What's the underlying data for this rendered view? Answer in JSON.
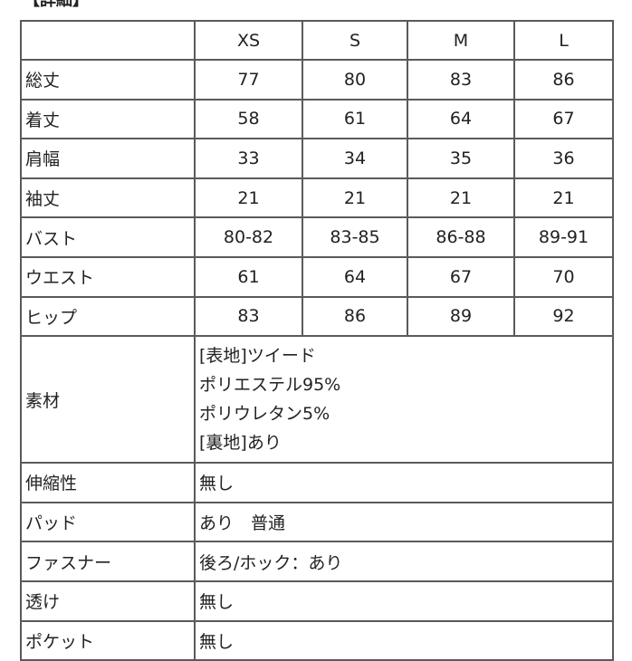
{
  "title": "【詳細】",
  "sizes": [
    "XS",
    "S",
    "M",
    "L"
  ],
  "measure_rows": [
    {
      "label": "総丈",
      "values": [
        "77",
        "80",
        "83",
        "86"
      ]
    },
    {
      "label": "着丈",
      "values": [
        "58",
        "61",
        "64",
        "67"
      ]
    },
    {
      "label": "肩幅",
      "values": [
        "33",
        "34",
        "35",
        "36"
      ]
    },
    {
      "label": "袖丈",
      "values": [
        "21",
        "21",
        "21",
        "21"
      ]
    },
    {
      "label": "バスト",
      "values": [
        "80-82",
        "83-85",
        "86-88",
        "89-91"
      ]
    },
    {
      "label": "ウエスト",
      "values": [
        "61",
        "64",
        "67",
        "70"
      ]
    },
    {
      "label": "ヒップ",
      "values": [
        "83",
        "86",
        "89",
        "92"
      ]
    }
  ],
  "material": {
    "label": "素材",
    "lines": [
      "[表地]ツイード",
      "ポリエステル95%",
      "ポリウレタン5%",
      "[裏地]あり"
    ]
  },
  "info_rows": [
    {
      "label": "伸縮性",
      "value": "無し"
    },
    {
      "label": "パッド",
      "value": "あり　普通"
    },
    {
      "label": "ファスナー",
      "value": "後ろ/ホック：あり"
    },
    {
      "label": "透け",
      "value": "無し"
    },
    {
      "label": "ポケット",
      "value": "無し"
    }
  ]
}
